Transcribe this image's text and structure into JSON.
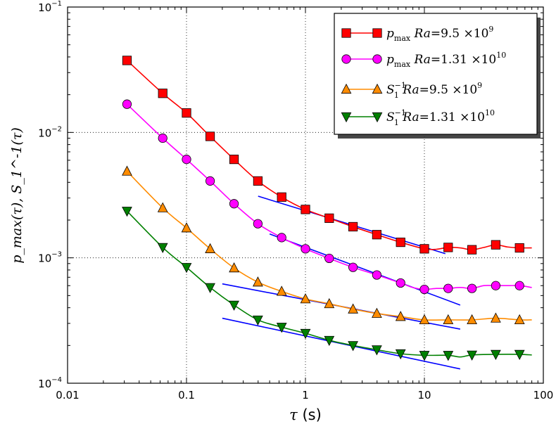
{
  "chart_data": {
    "type": "line",
    "xscale": "log",
    "yscale": "log",
    "xlim": [
      0.01,
      100
    ],
    "ylim": [
      0.0001,
      0.1
    ],
    "grid": true,
    "legend_position": "top-right",
    "xlabel": {
      "symbol": "τ",
      "unit": "(s)"
    },
    "ylabel": {
      "text": "p_max(τ), S_1^-1(τ)"
    },
    "x_ticks": [
      {
        "value": 0.01,
        "label": "0.01"
      },
      {
        "value": 0.1,
        "label": "0.1"
      },
      {
        "value": 1,
        "label": "1"
      },
      {
        "value": 10,
        "label": "10"
      },
      {
        "value": 100,
        "label": "100"
      }
    ],
    "y_ticks": [
      {
        "value": 0.0001,
        "base": "10",
        "exp": "−4"
      },
      {
        "value": 0.001,
        "base": "10",
        "exp": "−3"
      },
      {
        "value": 0.01,
        "base": "10",
        "exp": "−2"
      },
      {
        "value": 0.1,
        "base": "10",
        "exp": "−1"
      }
    ],
    "series": [
      {
        "name": "p_max Ra=9.5×10^9",
        "legend": {
          "sym": "p",
          "sub": "max",
          "ra": "Ra",
          "val": "=9.5 ×10",
          "exp": "9"
        },
        "color": "#ff0000",
        "marker": "square",
        "markers": [
          [
            0.0316,
            0.0375
          ],
          [
            0.0631,
            0.0205
          ],
          [
            0.1,
            0.0143
          ],
          [
            0.158,
            0.0093
          ],
          [
            0.251,
            0.0061
          ],
          [
            0.398,
            0.0041
          ],
          [
            0.631,
            0.00305
          ],
          [
            1.0,
            0.00243
          ],
          [
            1.585,
            0.00207
          ],
          [
            2.512,
            0.00177
          ],
          [
            3.981,
            0.00153
          ],
          [
            6.31,
            0.00133
          ],
          [
            10.0,
            0.00118
          ],
          [
            15.85,
            0.00121
          ],
          [
            25.12,
            0.00116
          ],
          [
            39.81,
            0.00127
          ],
          [
            63.1,
            0.0012
          ]
        ],
        "line": [
          [
            0.0316,
            0.0375
          ],
          [
            0.0631,
            0.0205
          ],
          [
            0.1,
            0.0143
          ],
          [
            0.158,
            0.0093
          ],
          [
            0.251,
            0.0061
          ],
          [
            0.398,
            0.0041
          ],
          [
            0.631,
            0.00305
          ],
          [
            1.0,
            0.00243
          ],
          [
            1.585,
            0.00207
          ],
          [
            2.512,
            0.00177
          ],
          [
            3.981,
            0.00153
          ],
          [
            6.31,
            0.00133
          ],
          [
            10.0,
            0.00118
          ],
          [
            12.6,
            0.00117
          ],
          [
            15.85,
            0.00121
          ],
          [
            20.0,
            0.0012
          ],
          [
            25.12,
            0.00116
          ],
          [
            31.6,
            0.00121
          ],
          [
            39.81,
            0.00127
          ],
          [
            50.1,
            0.00122
          ],
          [
            63.1,
            0.0012
          ],
          [
            80.0,
            0.0012
          ]
        ]
      },
      {
        "name": "p_max Ra=1.31×10^10",
        "legend": {
          "sym": "p",
          "sub": "max",
          "ra": "Ra",
          "val": "=1.31 ×10",
          "exp": "10"
        },
        "color": "#ff00ff",
        "marker": "circle",
        "markers": [
          [
            0.0316,
            0.0168
          ],
          [
            0.0631,
            0.009
          ],
          [
            0.1,
            0.0061
          ],
          [
            0.158,
            0.0041
          ],
          [
            0.251,
            0.0027
          ],
          [
            0.398,
            0.00187
          ],
          [
            0.631,
            0.00145
          ],
          [
            1.0,
            0.00118
          ],
          [
            1.585,
            0.00099
          ],
          [
            2.512,
            0.00084
          ],
          [
            3.981,
            0.00073
          ],
          [
            6.31,
            0.00063
          ],
          [
            10.0,
            0.00056
          ],
          [
            15.85,
            0.00057
          ],
          [
            25.12,
            0.00057
          ],
          [
            39.81,
            0.0006
          ],
          [
            63.1,
            0.0006
          ]
        ],
        "line": [
          [
            0.0316,
            0.0168
          ],
          [
            0.0631,
            0.009
          ],
          [
            0.1,
            0.0061
          ],
          [
            0.158,
            0.0041
          ],
          [
            0.251,
            0.0027
          ],
          [
            0.398,
            0.00187
          ],
          [
            0.631,
            0.00145
          ],
          [
            1.0,
            0.00118
          ],
          [
            1.585,
            0.00099
          ],
          [
            2.512,
            0.00084
          ],
          [
            3.981,
            0.00073
          ],
          [
            6.31,
            0.00063
          ],
          [
            8.0,
            0.00058
          ],
          [
            10.0,
            0.00056
          ],
          [
            12.6,
            0.00057
          ],
          [
            15.85,
            0.00057
          ],
          [
            20.0,
            0.00058
          ],
          [
            25.12,
            0.00057
          ],
          [
            31.6,
            0.0006
          ],
          [
            39.81,
            0.0006
          ],
          [
            50.1,
            0.0006
          ],
          [
            63.1,
            0.0006
          ],
          [
            80.0,
            0.00058
          ]
        ]
      },
      {
        "name": "S_1^-1 Ra=9.5×10^9",
        "legend": {
          "sym": "S",
          "sub": "1",
          "sup": "−1",
          "ra": "Ra",
          "val": "=9.5 ×10",
          "exp": "9"
        },
        "color": "#ff8c00",
        "marker": "triangle-up",
        "markers": [
          [
            0.0316,
            0.0049
          ],
          [
            0.0631,
            0.0025
          ],
          [
            0.1,
            0.00173
          ],
          [
            0.158,
            0.00118
          ],
          [
            0.251,
            0.00083
          ],
          [
            0.398,
            0.00064
          ],
          [
            0.631,
            0.00054
          ],
          [
            1.0,
            0.00047
          ],
          [
            1.585,
            0.00043
          ],
          [
            2.512,
            0.00039
          ],
          [
            3.981,
            0.00036
          ],
          [
            6.31,
            0.00034
          ],
          [
            10.0,
            0.00032
          ],
          [
            15.85,
            0.00032
          ],
          [
            25.12,
            0.00032
          ],
          [
            39.81,
            0.00033
          ],
          [
            63.1,
            0.00032
          ]
        ],
        "line": [
          [
            0.0316,
            0.0049
          ],
          [
            0.0631,
            0.0025
          ],
          [
            0.1,
            0.00173
          ],
          [
            0.158,
            0.00118
          ],
          [
            0.251,
            0.00083
          ],
          [
            0.398,
            0.00064
          ],
          [
            0.631,
            0.00054
          ],
          [
            1.0,
            0.00047
          ],
          [
            1.585,
            0.00043
          ],
          [
            2.512,
            0.00039
          ],
          [
            3.981,
            0.00036
          ],
          [
            6.31,
            0.00034
          ],
          [
            10.0,
            0.00032
          ],
          [
            15.85,
            0.00032
          ],
          [
            25.12,
            0.00032
          ],
          [
            39.81,
            0.00033
          ],
          [
            63.1,
            0.00032
          ],
          [
            80.0,
            0.00032
          ]
        ]
      },
      {
        "name": "S_1^-1 Ra=1.31×10^10",
        "legend": {
          "sym": "S",
          "sub": "1",
          "sup": "−1",
          "ra": "Ra",
          "val": "=1.31 ×10",
          "exp": "10"
        },
        "color": "#008000",
        "marker": "triangle-down",
        "markers": [
          [
            0.0316,
            0.00236
          ],
          [
            0.0631,
            0.00121
          ],
          [
            0.1,
            0.00084
          ],
          [
            0.158,
            0.00058
          ],
          [
            0.251,
            0.00042
          ],
          [
            0.398,
            0.00032
          ],
          [
            0.631,
            0.00028
          ],
          [
            1.0,
            0.00025
          ],
          [
            1.585,
            0.00022
          ],
          [
            2.512,
            0.0002
          ],
          [
            3.981,
            0.000185
          ],
          [
            6.31,
            0.000172
          ],
          [
            10.0,
            0.000167
          ],
          [
            15.85,
            0.000167
          ],
          [
            25.12,
            0.000168
          ],
          [
            39.81,
            0.00017
          ],
          [
            63.1,
            0.00017
          ]
        ],
        "line": [
          [
            0.0316,
            0.00236
          ],
          [
            0.0631,
            0.00121
          ],
          [
            0.1,
            0.00084
          ],
          [
            0.158,
            0.00058
          ],
          [
            0.251,
            0.00042
          ],
          [
            0.398,
            0.00032
          ],
          [
            0.631,
            0.00028
          ],
          [
            1.0,
            0.00025
          ],
          [
            1.585,
            0.00022
          ],
          [
            2.512,
            0.0002
          ],
          [
            3.981,
            0.000185
          ],
          [
            6.31,
            0.000172
          ],
          [
            10.0,
            0.000167
          ],
          [
            15.85,
            0.000167
          ],
          [
            20.0,
            0.000162
          ],
          [
            25.12,
            0.000168
          ],
          [
            39.81,
            0.00017
          ],
          [
            63.1,
            0.00017
          ],
          [
            80.0,
            0.000168
          ]
        ]
      }
    ],
    "fit_lines": [
      {
        "color": "#0000ff",
        "points": [
          [
            0.4,
            0.0031
          ],
          [
            15.0,
            0.00108
          ]
        ]
      },
      {
        "color": "#0000ff",
        "points": [
          [
            0.5,
            0.00155
          ],
          [
            20.0,
            0.00042
          ]
        ]
      },
      {
        "color": "#0000ff",
        "points": [
          [
            0.2,
            0.00062
          ],
          [
            20.0,
            0.00027
          ]
        ]
      },
      {
        "color": "#0000ff",
        "points": [
          [
            0.2,
            0.00033
          ],
          [
            20.0,
            0.00013
          ]
        ]
      }
    ]
  }
}
